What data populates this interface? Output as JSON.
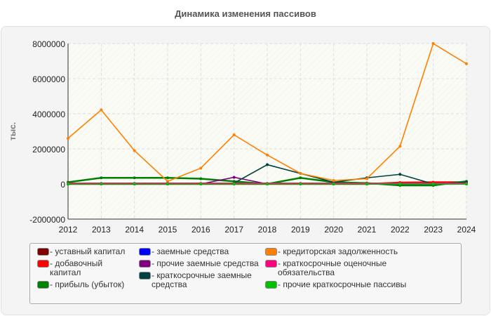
{
  "title": "Динамика изменения пассивов",
  "chart_data": {
    "type": "line",
    "title": "Динамика изменения пассивов",
    "ylabel": "тыс.",
    "xlabel": "",
    "x": [
      2012,
      2013,
      2014,
      2015,
      2016,
      2017,
      2018,
      2019,
      2020,
      2021,
      2022,
      2023,
      2024
    ],
    "ylim": [
      -2000000,
      8000000
    ],
    "yticks": [
      -2000000,
      0,
      2000000,
      4000000,
      6000000,
      8000000
    ],
    "grid": true,
    "legend_position": "bottom",
    "series": [
      {
        "name": "уставный капитал",
        "color": "#800000",
        "values": [
          10000,
          10000,
          10000,
          10000,
          10000,
          10000,
          10000,
          10000,
          10000,
          10000,
          10000,
          10000,
          10000
        ]
      },
      {
        "name": "добавочный капитал",
        "color": "#ff0000",
        "values": [
          0,
          0,
          0,
          0,
          0,
          0,
          0,
          0,
          0,
          0,
          80000,
          100000,
          100000
        ]
      },
      {
        "name": "прибыль (убыток)",
        "color": "#008000",
        "values": [
          100000,
          350000,
          350000,
          350000,
          300000,
          150000,
          0,
          350000,
          100000,
          50000,
          -80000,
          -80000,
          150000
        ]
      },
      {
        "name": "заемные средства",
        "color": "#0000ff",
        "values": [
          0,
          0,
          0,
          0,
          0,
          0,
          0,
          0,
          0,
          0,
          0,
          0,
          0
        ]
      },
      {
        "name": "прочие заемные средства",
        "color": "#800080",
        "values": [
          0,
          0,
          0,
          0,
          0,
          380000,
          0,
          0,
          0,
          0,
          0,
          0,
          0
        ]
      },
      {
        "name": "краткосрочные заемные средства",
        "color": "#004040",
        "values": [
          0,
          0,
          0,
          0,
          0,
          50000,
          1100000,
          600000,
          100000,
          350000,
          550000,
          0,
          100000
        ]
      },
      {
        "name": "кредиторская задолженность",
        "color": "#ff8000",
        "values": [
          2600000,
          4220000,
          1900000,
          150000,
          900000,
          2800000,
          1650000,
          600000,
          200000,
          300000,
          2150000,
          8000000,
          6850000
        ]
      },
      {
        "name": "краткосрочные оценочные обязательства",
        "color": "#ff0080",
        "values": [
          30000,
          30000,
          30000,
          30000,
          30000,
          30000,
          30000,
          30000,
          30000,
          30000,
          30000,
          30000,
          30000
        ]
      },
      {
        "name": "прочие краткосрочные пассивы",
        "color": "#00c000",
        "values": [
          0,
          0,
          0,
          0,
          0,
          0,
          0,
          0,
          0,
          0,
          0,
          0,
          0
        ]
      }
    ]
  }
}
